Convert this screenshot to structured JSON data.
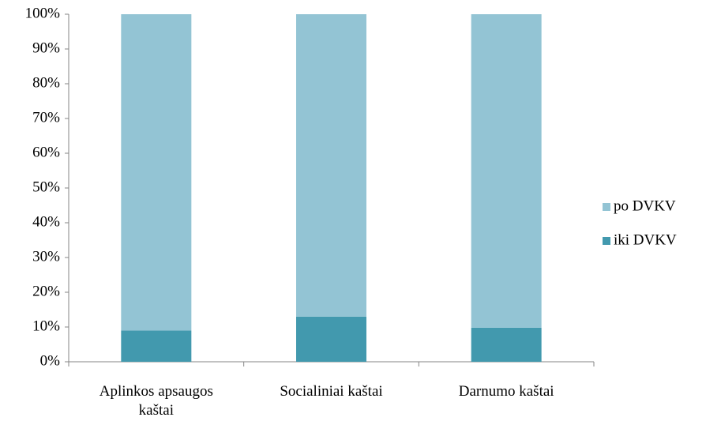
{
  "chart_data": {
    "type": "stacked_bar",
    "categories": [
      "Aplinkos apsaugos kaštai",
      "Socialiniai kaštai",
      "Darnumo kaštai"
    ],
    "series": [
      {
        "name": "iki DVKV",
        "color": "#4299ae",
        "values": [
          9,
          13,
          9.8
        ]
      },
      {
        "name": "po DVKV",
        "color": "#93c4d4",
        "values": [
          91,
          87,
          90.2
        ]
      }
    ],
    "ylim": [
      0,
      100
    ],
    "yticks": [
      {
        "value": 0,
        "label": "0%"
      },
      {
        "value": 10,
        "label": "10%"
      },
      {
        "value": 20,
        "label": "20%"
      },
      {
        "value": 30,
        "label": "30%"
      },
      {
        "value": 40,
        "label": "40%"
      },
      {
        "value": 50,
        "label": "50%"
      },
      {
        "value": 60,
        "label": "60%"
      },
      {
        "value": 70,
        "label": "70%"
      },
      {
        "value": 80,
        "label": "80%"
      },
      {
        "value": 90,
        "label": "90%"
      },
      {
        "value": 100,
        "label": "100%"
      }
    ],
    "legend": "right"
  }
}
